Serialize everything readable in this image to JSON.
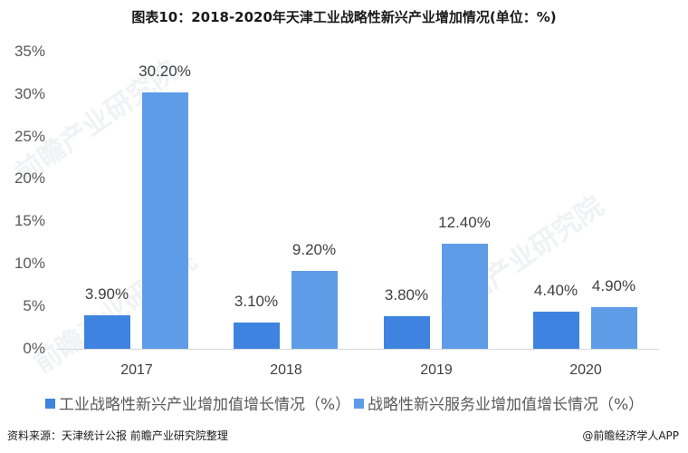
{
  "title": "图表10：2018-2020年天津工业战略性新兴产业增加情况(单位：%)",
  "y_ticks": [
    "35%",
    "30%",
    "25%",
    "20%",
    "15%",
    "10%",
    "5%",
    "0%"
  ],
  "categories": [
    "2017",
    "2018",
    "2019",
    "2020"
  ],
  "series1": {
    "name": "工业战略性新兴产业增加值增长情况（%）",
    "color": "#3f83e0",
    "labels": [
      "3.90%",
      "3.10%",
      "3.80%",
      "4.40%"
    ]
  },
  "series2": {
    "name": "战略性新兴服务业增加值增长情况（%）",
    "color": "#5f9ce8",
    "labels": [
      "30.20%",
      "9.20%",
      "12.40%",
      "4.90%"
    ]
  },
  "source": "资料来源：天津统计公报 前瞻产业研究院整理",
  "credit": "@前瞻经济学人APP",
  "watermark": "前瞻产业研究院",
  "chart_data": {
    "type": "bar",
    "title": "图表10：2018-2020年天津工业战略性新兴产业增加情况(单位：%)",
    "categories": [
      "2017",
      "2018",
      "2019",
      "2020"
    ],
    "series": [
      {
        "name": "工业战略性新兴产业增加值增长情况（%）",
        "values": [
          3.9,
          3.1,
          3.8,
          4.4
        ],
        "color": "#3f83e0"
      },
      {
        "name": "战略性新兴服务业增加值增长情况（%）",
        "values": [
          30.2,
          9.2,
          12.4,
          4.9
        ],
        "color": "#5f9ce8"
      }
    ],
    "xlabel": "",
    "ylabel": "",
    "ylim": [
      0,
      35
    ],
    "yticks": [
      0,
      5,
      10,
      15,
      20,
      25,
      30,
      35
    ],
    "grid": false,
    "legend_position": "bottom"
  }
}
